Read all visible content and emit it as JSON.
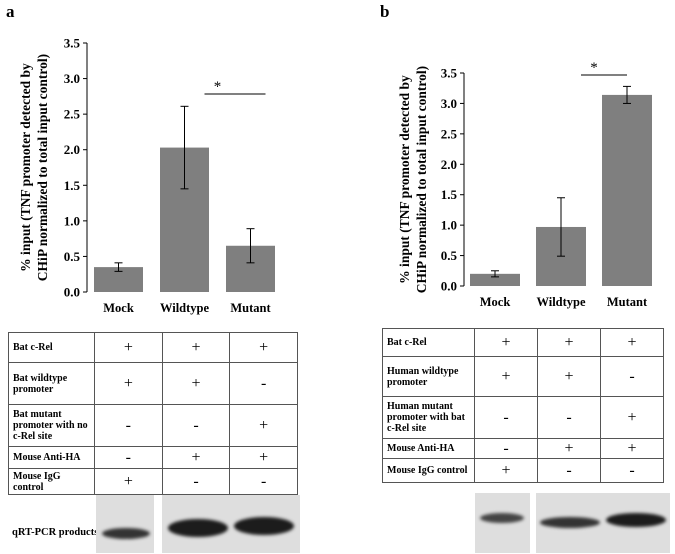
{
  "panels": [
    {
      "letter": "a",
      "chart_data": {
        "type": "bar",
        "categories": [
          "Mock",
          "Wildtype",
          "Mutant"
        ],
        "values": [
          0.35,
          2.03,
          0.65
        ],
        "errors": [
          0.06,
          0.58,
          0.24
        ],
        "ylabel_line1": "% input (TNF promoter detected by",
        "ylabel_line2": "CHiP normalized to total input control)",
        "ylim": [
          0,
          3.5
        ],
        "yticks": [
          "0.0",
          "0.5",
          "1.0",
          "1.5",
          "2.0",
          "2.5",
          "3.0",
          "3.5"
        ],
        "significance": {
          "from": 1,
          "to": 2,
          "label": "*"
        },
        "bar_color": "#7f7f7f"
      },
      "table": {
        "rows": [
          {
            "label": "Bat c-Rel",
            "signs": [
              "+",
              "+",
              "+"
            ]
          },
          {
            "label": "Bat wildtype promoter",
            "signs": [
              "+",
              "+",
              "-"
            ]
          },
          {
            "label": "Bat mutant promoter with no c-Rel site",
            "signs": [
              "-",
              "-",
              "+"
            ]
          },
          {
            "label": "Mouse Anti-HA",
            "signs": [
              "-",
              "+",
              "+"
            ]
          },
          {
            "label": "Mouse IgG control",
            "signs": [
              "+",
              "-",
              "-"
            ]
          }
        ]
      },
      "gel_label": "qRT-PCR products"
    },
    {
      "letter": "b",
      "chart_data": {
        "type": "bar",
        "categories": [
          "Mock",
          "Wildtype",
          "Mutant"
        ],
        "values": [
          0.2,
          0.97,
          3.14
        ],
        "errors": [
          0.05,
          0.48,
          0.14
        ],
        "ylabel_line1": "% input (TNF promoter detected by",
        "ylabel_line2": "CHiP normalized to total input control)",
        "ylim": [
          0,
          3.5
        ],
        "yticks": [
          "0.0",
          "0.5",
          "1.0",
          "1.5",
          "2.0",
          "2.5",
          "3.0",
          "3.5"
        ],
        "significance": {
          "from": 1,
          "to": 2,
          "label": "*"
        },
        "bar_color": "#7f7f7f"
      },
      "table": {
        "rows": [
          {
            "label": "Bat c-Rel",
            "signs": [
              "+",
              "+",
              "+"
            ]
          },
          {
            "label": "Human wildtype promoter",
            "signs": [
              "+",
              "+",
              "-"
            ]
          },
          {
            "label": "Human mutant promoter with bat c-Rel site",
            "signs": [
              "-",
              "-",
              "+"
            ]
          },
          {
            "label": "Mouse Anti-HA",
            "signs": [
              "-",
              "+",
              "+"
            ]
          },
          {
            "label": "Mouse IgG control",
            "signs": [
              "+",
              "-",
              "-"
            ]
          }
        ]
      }
    }
  ]
}
